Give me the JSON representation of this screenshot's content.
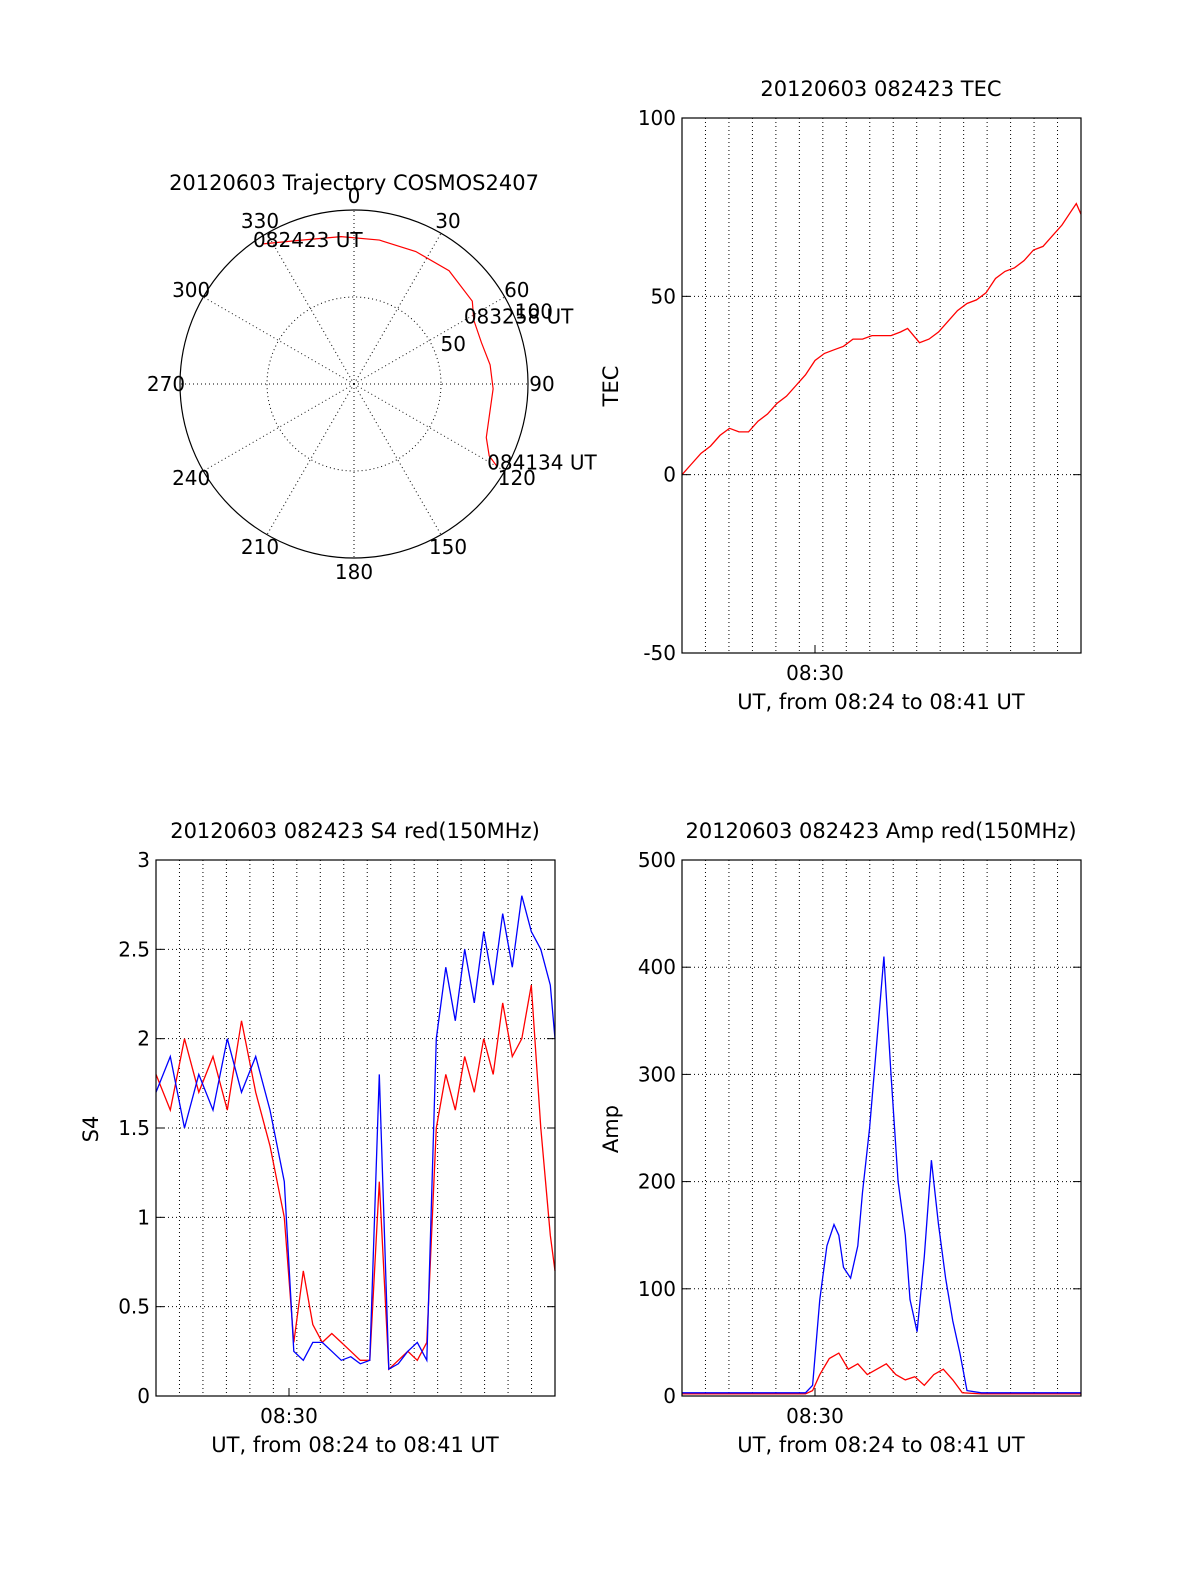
{
  "colors": {
    "red_series": "#ff0000",
    "blue_series": "#0000ff",
    "axes": "#000000"
  },
  "chart_data": [
    {
      "type": "polar",
      "title": "20120603 Trajectory COSMOS2407",
      "azimuth_ticks": [
        "0",
        "30",
        "60",
        "90",
        "120",
        "150",
        "180",
        "210",
        "240",
        "270",
        "300",
        "330"
      ],
      "azimuth_values": [
        0,
        30,
        60,
        90,
        120,
        150,
        180,
        210,
        240,
        270,
        300,
        330
      ],
      "radius_ticks": [
        "50",
        "100"
      ],
      "radius_values": [
        50,
        100
      ],
      "rlim": [
        0,
        100
      ],
      "grid": true,
      "trajectory": {
        "azimuth": [
          327,
          340,
          355,
          10,
          25,
          40,
          55,
          62,
          72,
          82,
          92,
          104,
          112,
          118,
          120
        ],
        "radius": [
          96,
          88,
          85,
          84,
          84,
          85,
          83,
          78,
          77,
          79,
          80,
          80,
          82,
          88,
          95
        ]
      },
      "annotations": [
        {
          "text": "082423 UT",
          "azimuth": 327,
          "radius": 96
        },
        {
          "text": "083258 UT",
          "azimuth": 62,
          "radius": 78
        },
        {
          "text": "084134 UT",
          "azimuth": 120,
          "radius": 95
        }
      ]
    },
    {
      "type": "line",
      "title": "20120603 082423 TEC",
      "ylabel": "TEC",
      "xlabel": "UT, from 08:24 to 08:41 UT",
      "xtick_labels": [
        "08:30"
      ],
      "xtick_values": [
        6
      ],
      "ytick_labels": [
        "-50",
        "0",
        "50",
        "100"
      ],
      "ytick_values": [
        -50,
        0,
        50,
        100
      ],
      "xlim": [
        0.4,
        17.2
      ],
      "ylim": [
        -50,
        100
      ],
      "grid": true,
      "series": [
        {
          "color": "#ff0000",
          "x": [
            0.4,
            0.8,
            1.2,
            1.6,
            2.0,
            2.4,
            2.8,
            3.2,
            3.6,
            4.0,
            4.4,
            4.8,
            5.2,
            5.6,
            6.0,
            6.4,
            6.8,
            7.2,
            7.6,
            8.0,
            8.4,
            8.8,
            9.2,
            9.6,
            9.9,
            10.4,
            10.8,
            11.2,
            11.6,
            12.0,
            12.4,
            12.8,
            13.2,
            13.6,
            14.0,
            14.4,
            14.8,
            15.2,
            15.6,
            16.0,
            16.4,
            16.8,
            17.0,
            17.2
          ],
          "y": [
            0,
            3,
            6,
            8,
            11,
            13,
            12,
            12,
            15,
            17,
            20,
            22,
            25,
            28,
            32,
            34,
            35,
            36,
            38,
            38,
            39,
            39,
            39,
            40,
            41,
            37,
            38,
            40,
            43,
            46,
            48,
            49,
            51,
            55,
            57,
            58,
            60,
            63,
            64,
            67,
            70,
            74,
            76,
            73
          ]
        }
      ]
    },
    {
      "type": "line",
      "title": "20120603 082423 S4 red(150MHz)",
      "ylabel": "S4",
      "xlabel": "UT, from 08:24 to 08:41 UT",
      "xtick_labels": [
        "08:30"
      ],
      "xtick_values": [
        6
      ],
      "ytick_labels": [
        "0",
        "0.5",
        "1",
        "1.5",
        "2",
        "2.5",
        "3"
      ],
      "ytick_values": [
        0,
        0.5,
        1,
        1.5,
        2,
        2.5,
        3
      ],
      "xlim": [
        0.4,
        17.2
      ],
      "ylim": [
        0,
        3
      ],
      "grid": true,
      "series": [
        {
          "color": "#ff0000",
          "x": [
            0.4,
            1.0,
            1.6,
            2.2,
            2.8,
            3.4,
            4.0,
            4.6,
            5.2,
            5.8,
            6.2,
            6.6,
            7.0,
            7.4,
            7.8,
            8.2,
            8.6,
            9.0,
            9.4,
            9.8,
            10.2,
            10.6,
            11.0,
            11.4,
            11.8,
            12.2,
            12.6,
            13.0,
            13.4,
            13.8,
            14.2,
            14.6,
            15.0,
            15.4,
            15.8,
            16.2,
            16.6,
            17.0,
            17.2
          ],
          "y": [
            1.8,
            1.6,
            2.0,
            1.7,
            1.9,
            1.6,
            2.1,
            1.7,
            1.4,
            1.0,
            0.3,
            0.7,
            0.4,
            0.3,
            0.35,
            0.3,
            0.25,
            0.2,
            0.2,
            1.2,
            0.15,
            0.2,
            0.25,
            0.2,
            0.3,
            1.5,
            1.8,
            1.6,
            1.9,
            1.7,
            2.0,
            1.8,
            2.2,
            1.9,
            2.0,
            2.3,
            1.5,
            0.9,
            0.7
          ]
        },
        {
          "color": "#0000ff",
          "x": [
            0.4,
            1.0,
            1.6,
            2.2,
            2.8,
            3.4,
            4.0,
            4.6,
            5.2,
            5.8,
            6.2,
            6.6,
            7.0,
            7.4,
            7.8,
            8.2,
            8.6,
            9.0,
            9.4,
            9.8,
            10.2,
            10.6,
            11.0,
            11.4,
            11.8,
            12.2,
            12.6,
            13.0,
            13.4,
            13.8,
            14.2,
            14.6,
            15.0,
            15.4,
            15.8,
            16.2,
            16.6,
            17.0,
            17.2
          ],
          "y": [
            1.7,
            1.9,
            1.5,
            1.8,
            1.6,
            2.0,
            1.7,
            1.9,
            1.6,
            1.2,
            0.25,
            0.2,
            0.3,
            0.3,
            0.25,
            0.2,
            0.22,
            0.18,
            0.2,
            1.8,
            0.15,
            0.18,
            0.25,
            0.3,
            0.2,
            2.0,
            2.4,
            2.1,
            2.5,
            2.2,
            2.6,
            2.3,
            2.7,
            2.4,
            2.8,
            2.6,
            2.5,
            2.3,
            2.0
          ]
        }
      ]
    },
    {
      "type": "line",
      "title": "20120603 082423 Amp red(150MHz)",
      "ylabel": "Amp",
      "xlabel": "UT, from 08:24 to 08:41 UT",
      "xtick_labels": [
        "08:30"
      ],
      "xtick_values": [
        6
      ],
      "ytick_labels": [
        "0",
        "100",
        "200",
        "300",
        "400",
        "500"
      ],
      "ytick_values": [
        0,
        100,
        200,
        300,
        400,
        500
      ],
      "xlim": [
        0.4,
        17.2
      ],
      "ylim": [
        0,
        500
      ],
      "grid": true,
      "series": [
        {
          "color": "#ff0000",
          "x": [
            0.4,
            2.0,
            4.0,
            5.6,
            5.9,
            6.2,
            6.6,
            7.0,
            7.4,
            7.8,
            8.2,
            8.6,
            9.0,
            9.4,
            9.8,
            10.2,
            10.6,
            11.0,
            11.4,
            11.8,
            12.2,
            13.0,
            15.0,
            17.2
          ],
          "y": [
            2,
            2,
            2,
            2,
            5,
            20,
            35,
            40,
            25,
            30,
            20,
            25,
            30,
            20,
            15,
            18,
            10,
            20,
            25,
            15,
            3,
            2,
            2,
            2
          ]
        },
        {
          "color": "#0000ff",
          "x": [
            0.4,
            2.0,
            4.0,
            5.6,
            5.9,
            6.2,
            6.5,
            6.8,
            7.0,
            7.2,
            7.5,
            7.8,
            8.0,
            8.3,
            8.6,
            8.9,
            9.2,
            9.5,
            9.8,
            10.0,
            10.3,
            10.6,
            10.9,
            11.2,
            11.5,
            11.8,
            12.1,
            12.4,
            13.0,
            15.0,
            17.2
          ],
          "y": [
            3,
            3,
            3,
            3,
            10,
            90,
            140,
            160,
            150,
            120,
            110,
            140,
            190,
            250,
            330,
            410,
            300,
            200,
            150,
            90,
            60,
            130,
            220,
            160,
            110,
            70,
            40,
            5,
            3,
            3,
            3
          ]
        }
      ]
    }
  ]
}
